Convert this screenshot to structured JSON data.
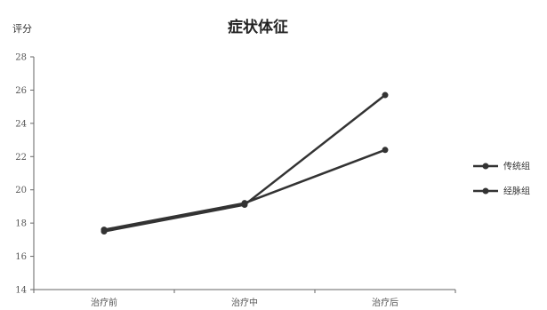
{
  "chart_data": {
    "type": "line",
    "title": "症状体征",
    "ylabel": "评分",
    "xlabel": "",
    "categories": [
      "治疗前",
      "治疗中",
      "治疗后"
    ],
    "ylim": [
      14,
      28
    ],
    "yticks": [
      14,
      16,
      18,
      20,
      22,
      24,
      26,
      28
    ],
    "grid": false,
    "legend_position": "right",
    "series": [
      {
        "name": "传统组",
        "values": [
          17.6,
          19.2,
          22.4
        ],
        "color": "#333333"
      },
      {
        "name": "经脉组",
        "values": [
          17.5,
          19.1,
          25.7
        ],
        "color": "#333333"
      }
    ]
  }
}
